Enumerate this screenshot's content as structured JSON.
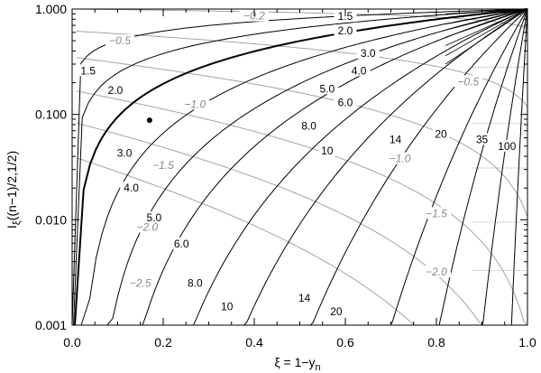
{
  "chart_data": {
    "type": "line",
    "xlabel": "ξ = 1−y",
    "xlabel_subscript": "n",
    "ylabel": "I",
    "ylabel_subscript": "ξ",
    "ylabel_args": "((n−1)/2,1/2)",
    "xlim": [
      0,
      1
    ],
    "ylim": [
      0.001,
      1
    ],
    "yscale": "log",
    "x_ticks": [
      0.0,
      0.2,
      0.4,
      0.6,
      0.8,
      1.0
    ],
    "x_tick_labels": [
      "0.0",
      "0.2",
      "0.4",
      "0.6",
      "0.8",
      "1.0"
    ],
    "y_ticks": [
      0.001,
      0.01,
      0.1,
      1.0
    ],
    "y_tick_labels": [
      "0.001",
      "0.010",
      "0.100",
      "1.000"
    ],
    "highlighted_series": "3.0",
    "marker": {
      "x": 0.17,
      "y": 0.088
    },
    "series": [
      {
        "name": "1.5",
        "style": "black",
        "label_at": [
          0.65,
          0.86
        ]
      },
      {
        "name": "2.0",
        "style": "black",
        "label_at": [
          0.65,
          0.64
        ]
      },
      {
        "name": "3.0",
        "style": "black",
        "label_at": [
          0.67,
          0.4
        ]
      },
      {
        "name": "4.0",
        "style": "black",
        "label_at": [
          0.67,
          0.26
        ]
      },
      {
        "name": "5.0",
        "style": "black",
        "label_at": [
          0.67,
          0.17
        ]
      },
      {
        "name": "6.0",
        "style": "black",
        "label_at": [
          0.66,
          0.125
        ]
      },
      {
        "name": "8.0",
        "style": "black",
        "label_at": [
          0.63,
          0.062
        ]
      },
      {
        "name": "10",
        "style": "black",
        "label_at": [
          0.65,
          0.033
        ]
      },
      {
        "name": "14",
        "style": "black",
        "label_at": [
          0.77,
          0.058
        ]
      },
      {
        "name": "20",
        "style": "black",
        "label_at": [
          0.84,
          0.07
        ]
      },
      {
        "name": "35",
        "style": "black",
        "label_at": [
          0.89,
          0.06
        ]
      },
      {
        "name": "100",
        "style": "black",
        "label_at": [
          0.95,
          0.05
        ]
      },
      {
        "name": "−0.2",
        "style": "gray",
        "label_at": [
          0.47,
          0.86
        ]
      },
      {
        "name": "−0.5",
        "style": "gray",
        "label_at": [
          0.88,
          0.22
        ]
      },
      {
        "name": "−1.0",
        "style": "gray",
        "label_at": [
          0.72,
          0.045
        ]
      },
      {
        "name": "−1.5",
        "style": "gray",
        "label_at": [
          0.87,
          0.013
        ]
      },
      {
        "name": "−2.0",
        "style": "gray",
        "label_at": [
          0.86,
          0.0035
        ]
      }
    ],
    "contour_labels_black": [
      {
        "text": "1.5",
        "x": 0.035,
        "y": 0.26
      },
      {
        "text": "1.5",
        "x": 0.6,
        "y": 0.85
      },
      {
        "text": "2.0",
        "x": 0.095,
        "y": 0.17
      },
      {
        "text": "2.0",
        "x": 0.6,
        "y": 0.62
      },
      {
        "text": "3.0",
        "x": 0.115,
        "y": 0.043
      },
      {
        "text": "3.0",
        "x": 0.65,
        "y": 0.38
      },
      {
        "text": "4.0",
        "x": 0.13,
        "y": 0.02
      },
      {
        "text": "4.0",
        "x": 0.63,
        "y": 0.26
      },
      {
        "text": "5.0",
        "x": 0.56,
        "y": 0.175
      },
      {
        "text": "5.0",
        "x": 0.18,
        "y": 0.0105
      },
      {
        "text": "6.0",
        "x": 0.24,
        "y": 0.0059
      },
      {
        "text": "6.0",
        "x": 0.6,
        "y": 0.13
      },
      {
        "text": "8.0",
        "x": 0.27,
        "y": 0.0025
      },
      {
        "text": "8.0",
        "x": 0.52,
        "y": 0.078
      },
      {
        "text": "10",
        "x": 0.34,
        "y": 0.0015
      },
      {
        "text": "10",
        "x": 0.56,
        "y": 0.045
      },
      {
        "text": "14",
        "x": 0.51,
        "y": 0.0018
      },
      {
        "text": "14",
        "x": 0.71,
        "y": 0.058
      },
      {
        "text": "20",
        "x": 0.58,
        "y": 0.00135
      },
      {
        "text": "20",
        "x": 0.81,
        "y": 0.065
      },
      {
        "text": "35",
        "x": 0.9,
        "y": 0.058
      },
      {
        "text": "100",
        "x": 0.955,
        "y": 0.05
      }
    ],
    "contour_labels_gray": [
      {
        "text": "−0.2",
        "x": 0.4,
        "y": 0.86
      },
      {
        "text": "−0.5",
        "x": 0.105,
        "y": 0.5
      },
      {
        "text": "−0.5",
        "x": 0.87,
        "y": 0.205
      },
      {
        "text": "−1.0",
        "x": 0.27,
        "y": 0.125
      },
      {
        "text": "−1.0",
        "x": 0.72,
        "y": 0.038
      },
      {
        "text": "−1.5",
        "x": 0.2,
        "y": 0.033
      },
      {
        "text": "−1.5",
        "x": 0.8,
        "y": 0.0115
      },
      {
        "text": "−2.0",
        "x": 0.165,
        "y": 0.0085
      },
      {
        "text": "−2.0",
        "x": 0.8,
        "y": 0.0032
      },
      {
        "text": "−2.5",
        "x": 0.15,
        "y": 0.0025
      }
    ]
  }
}
